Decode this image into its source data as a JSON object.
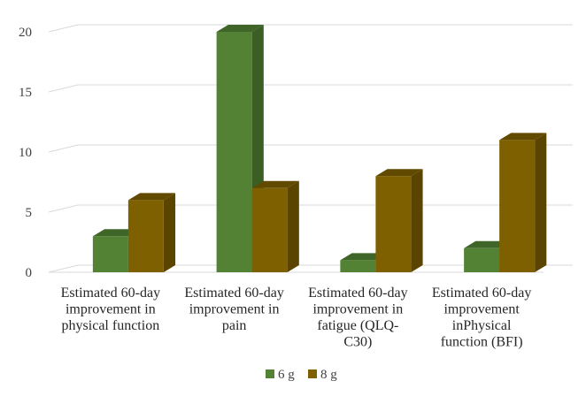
{
  "chart_data": {
    "type": "bar",
    "style": "3d-clustered-column",
    "categories": [
      [
        "Estimated 60-day",
        "improvement in",
        "physical function"
      ],
      [
        "Estimated 60-day",
        "improvement in",
        "pain"
      ],
      [
        "Estimated 60-day",
        "improvement in",
        "fatigue (QLQ-",
        "C30)"
      ],
      [
        "Estimated 60-day",
        "improvement",
        "inPhysical",
        "function (BFI)"
      ]
    ],
    "series": [
      {
        "name": "6 g",
        "values": [
          3,
          20,
          1,
          2
        ],
        "color": "#548235",
        "side_color": "#3b5e25",
        "top_color": "#3f6528"
      },
      {
        "name": "8 g",
        "values": [
          6,
          7,
          8,
          11
        ],
        "color": "#7f6000",
        "side_color": "#5a4400",
        "top_color": "#614900"
      }
    ],
    "yticks": [
      0,
      5,
      10,
      15,
      20
    ],
    "ylim": [
      0,
      20
    ],
    "grid": true,
    "legend_position": "bottom-center",
    "title": "",
    "xlabel": "",
    "ylabel": ""
  }
}
